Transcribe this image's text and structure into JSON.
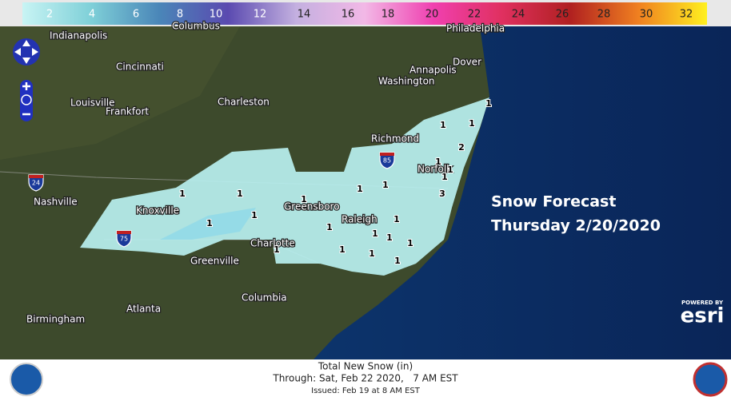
{
  "legend": {
    "labels": [
      2,
      4,
      6,
      8,
      10,
      12,
      14,
      16,
      18,
      20,
      22,
      24,
      26,
      28,
      30,
      32
    ]
  },
  "map": {
    "cities": [
      "Indianapolis",
      "Columbus",
      "Philadelphia",
      "Cincinnati",
      "Dover",
      "Annapolis",
      "Washington",
      "Louisville",
      "Frankfort",
      "Charleston",
      "Richmond",
      "Norfolk",
      "Nashville",
      "Knoxville",
      "Greensboro",
      "Raleigh",
      "Charlotte",
      "Greenville",
      "Columbia",
      "Atlanta",
      "Birmingham"
    ],
    "interstates": [
      "24",
      "85",
      "75"
    ],
    "snow_labels": [
      "1",
      "1",
      "1",
      "2",
      "1",
      "1",
      "3",
      "1",
      "1",
      "1",
      "1",
      "1",
      "1",
      "1",
      "1",
      "1",
      "1",
      "1",
      "1",
      "1",
      "1",
      "1",
      "1",
      "1"
    ],
    "overlay": {
      "title": "Snow Forecast",
      "date": "Thursday 2/20/2020"
    }
  },
  "attribution": {
    "powered_by": "POWERED BY",
    "brand": "esri"
  },
  "footer": {
    "title": "Total New Snow (in)",
    "through": "Through: Sat, Feb 22 2020,   7 AM EST",
    "issued": "Issued: Feb 19 at 8 AM EST"
  }
}
